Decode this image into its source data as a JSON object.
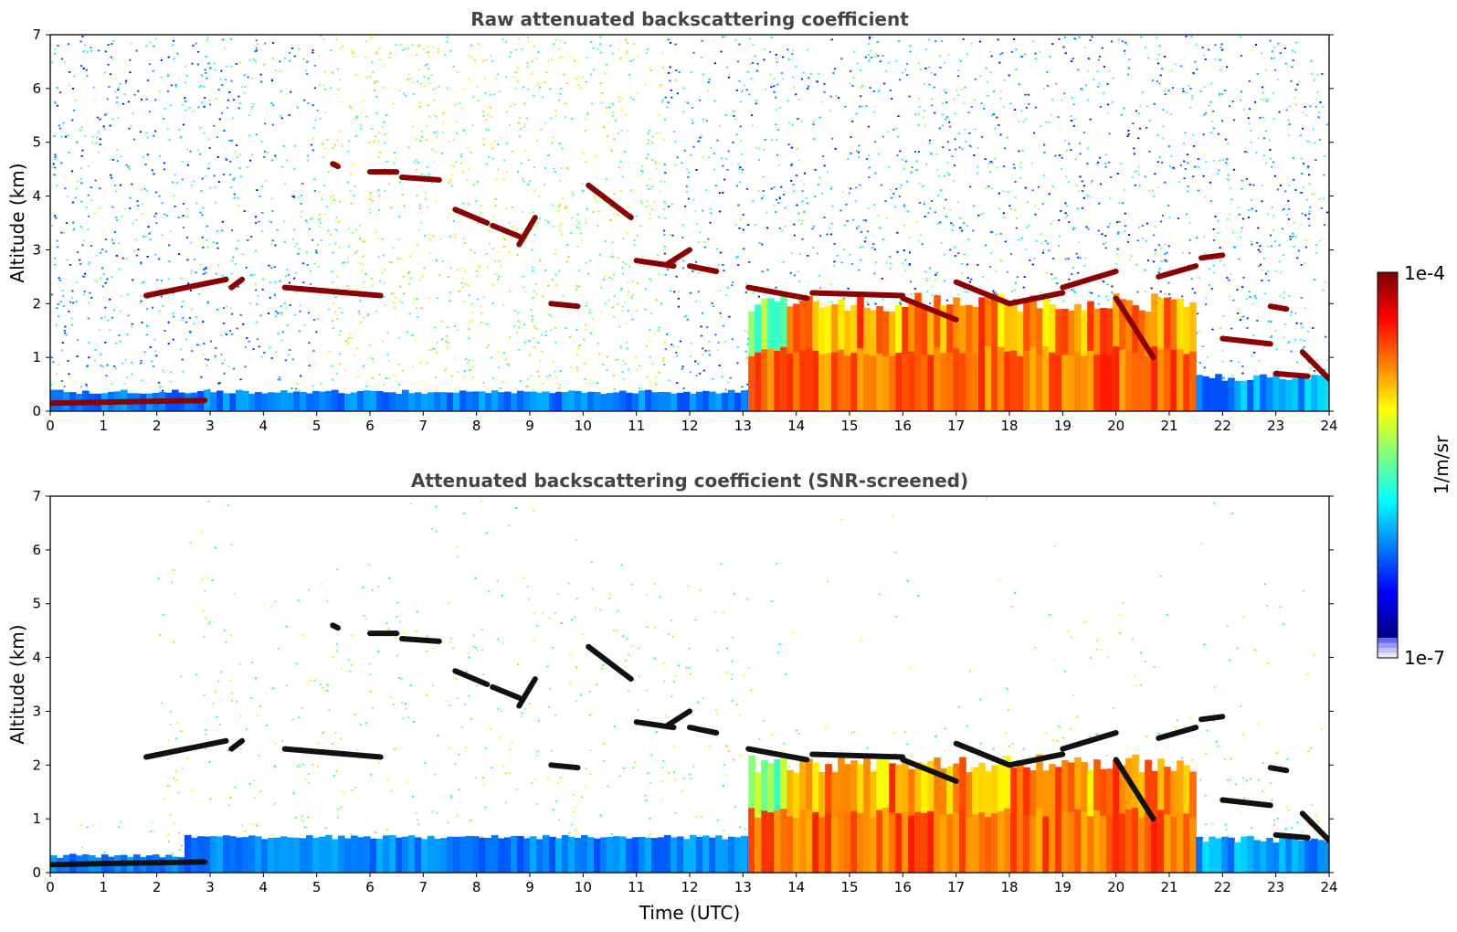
{
  "chart_data": [
    {
      "type": "heatmap",
      "title": "Raw attenuated backscattering coefficient",
      "xlabel": "",
      "ylabel": "Altitude (km)",
      "xlim": [
        0,
        24
      ],
      "ylim": [
        0,
        7
      ],
      "xticks": [
        "0",
        "1",
        "2",
        "3",
        "4",
        "5",
        "6",
        "7",
        "8",
        "9",
        "10",
        "11",
        "12",
        "13",
        "14",
        "15",
        "16",
        "17",
        "18",
        "19",
        "20",
        "21",
        "22",
        "23",
        "24"
      ],
      "yticks": [
        "0",
        "1",
        "2",
        "3",
        "4",
        "5",
        "6",
        "7"
      ],
      "color_scale": "jet, log",
      "layers": [
        {
          "kind": "noise_background",
          "x_range": [
            0,
            24
          ],
          "y_range": [
            0,
            7
          ],
          "level": "low-mid"
        },
        {
          "kind": "boundary_layer",
          "x_range": [
            0,
            13.1
          ],
          "y_range": [
            0,
            0.35
          ],
          "level": "blue"
        },
        {
          "kind": "aerosol_dense",
          "x_range": [
            13.1,
            21.4
          ],
          "y_range": [
            0,
            2.2
          ],
          "level": "yellow-orange"
        },
        {
          "kind": "aerosol_low",
          "x_range": [
            21.5,
            24
          ],
          "y_range": [
            0,
            0.7
          ],
          "level": "blue"
        }
      ],
      "cloud_segments": [
        {
          "x": [
            0,
            2.9
          ],
          "y": [
            0.15,
            0.2
          ]
        },
        {
          "x": [
            1.8,
            3.3
          ],
          "y": [
            2.15,
            2.45
          ]
        },
        {
          "x": [
            3.4,
            3.6
          ],
          "y": [
            2.3,
            2.45
          ]
        },
        {
          "x": [
            4.4,
            6.2
          ],
          "y": [
            2.3,
            2.15
          ]
        },
        {
          "x": [
            5.3,
            5.4
          ],
          "y": [
            4.6,
            4.55
          ]
        },
        {
          "x": [
            6.0,
            6.5
          ],
          "y": [
            4.45,
            4.45
          ]
        },
        {
          "x": [
            6.6,
            7.3
          ],
          "y": [
            4.35,
            4.3
          ]
        },
        {
          "x": [
            7.6,
            8.2
          ],
          "y": [
            3.75,
            3.5
          ]
        },
        {
          "x": [
            8.3,
            8.8
          ],
          "y": [
            3.45,
            3.25
          ]
        },
        {
          "x": [
            8.8,
            9.1
          ],
          "y": [
            3.1,
            3.6
          ]
        },
        {
          "x": [
            9.4,
            9.9
          ],
          "y": [
            2.0,
            1.95
          ]
        },
        {
          "x": [
            10.1,
            10.9
          ],
          "y": [
            4.2,
            3.6
          ]
        },
        {
          "x": [
            11.0,
            11.7
          ],
          "y": [
            2.8,
            2.7
          ]
        },
        {
          "x": [
            11.6,
            12.0
          ],
          "y": [
            2.75,
            3.0
          ]
        },
        {
          "x": [
            12.0,
            12.5
          ],
          "y": [
            2.7,
            2.6
          ]
        },
        {
          "x": [
            13.1,
            14.2
          ],
          "y": [
            2.3,
            2.1
          ]
        },
        {
          "x": [
            14.3,
            16.0
          ],
          "y": [
            2.2,
            2.15
          ]
        },
        {
          "x": [
            16.0,
            17.0
          ],
          "y": [
            2.1,
            1.7
          ]
        },
        {
          "x": [
            17.0,
            18.0
          ],
          "y": [
            2.4,
            2.0
          ]
        },
        {
          "x": [
            18.0,
            19.0
          ],
          "y": [
            2.0,
            2.2
          ]
        },
        {
          "x": [
            19.0,
            20.0
          ],
          "y": [
            2.3,
            2.6
          ]
        },
        {
          "x": [
            20.0,
            20.7
          ],
          "y": [
            2.1,
            1.0
          ]
        },
        {
          "x": [
            20.8,
            21.5
          ],
          "y": [
            2.5,
            2.7
          ]
        },
        {
          "x": [
            21.6,
            22.0
          ],
          "y": [
            2.85,
            2.9
          ]
        },
        {
          "x": [
            22.0,
            22.9
          ],
          "y": [
            1.35,
            1.25
          ]
        },
        {
          "x": [
            22.9,
            23.2
          ],
          "y": [
            1.95,
            1.9
          ]
        },
        {
          "x": [
            23.0,
            23.6
          ],
          "y": [
            0.7,
            0.65
          ]
        },
        {
          "x": [
            23.5,
            24.0
          ],
          "y": [
            1.1,
            0.6
          ]
        }
      ]
    },
    {
      "type": "heatmap",
      "title": "Attenuated backscattering coefficient (SNR-screened)",
      "xlabel": "Time (UTC)",
      "ylabel": "Altitude (km)",
      "xlim": [
        0,
        24
      ],
      "ylim": [
        0,
        7
      ],
      "xticks": [
        "0",
        "1",
        "2",
        "3",
        "4",
        "5",
        "6",
        "7",
        "8",
        "9",
        "10",
        "11",
        "12",
        "13",
        "14",
        "15",
        "16",
        "17",
        "18",
        "19",
        "20",
        "21",
        "22",
        "23",
        "24"
      ],
      "yticks": [
        "0",
        "1",
        "2",
        "3",
        "4",
        "5",
        "6",
        "7"
      ],
      "color_scale": "jet, log",
      "screened": true
    }
  ],
  "colorbar": {
    "label": "1/m/sr",
    "max_label": "1e-4",
    "min_label": "1e-7",
    "colormap": [
      "#00007f",
      "#0000ff",
      "#007fff",
      "#00ffff",
      "#7fff7f",
      "#ffff00",
      "#ff7f00",
      "#ff0000",
      "#7f0000"
    ],
    "low_colors": [
      "#e6e6f7",
      "#c0c0ee",
      "#9999ee",
      "#6666f0"
    ]
  }
}
